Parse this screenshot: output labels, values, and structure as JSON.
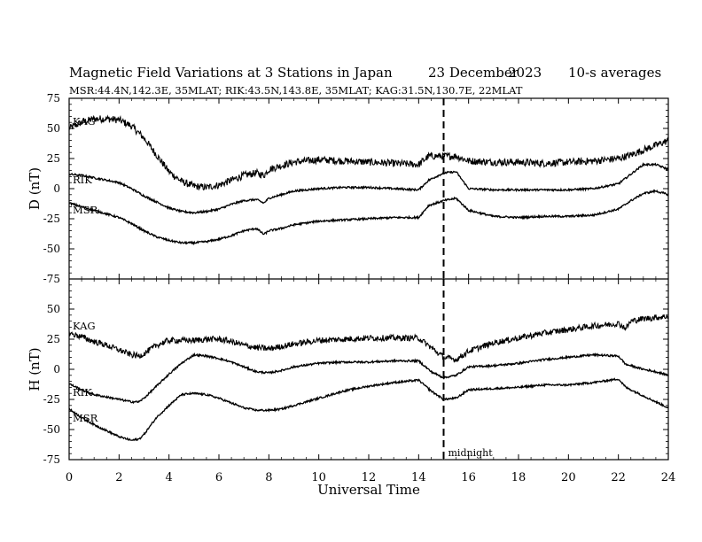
{
  "header": {
    "title": "Magnetic Field Variations at 3 Stations in Japan",
    "date_day": "23 December",
    "date_year": "2023",
    "averaging": "10-s averages",
    "stations_line": "MSR:44.4N,142.3E, 35MLAT;  RIK:43.5N,143.8E, 35MLAT;  KAG:31.5N,130.7E, 22MLAT"
  },
  "chart_data": [
    {
      "type": "line",
      "panel": "top",
      "ylabel": "D (nT)",
      "xlabel": "",
      "xlim": [
        0,
        24
      ],
      "ylim": [
        -75,
        75
      ],
      "xticks": [
        0,
        2,
        4,
        6,
        8,
        10,
        12,
        14,
        16,
        18,
        20,
        22,
        24
      ],
      "yticks": [
        75,
        50,
        25,
        0,
        -25,
        -50,
        -75
      ],
      "marker": {
        "x": 15,
        "style": "dashed"
      },
      "series": [
        {
          "name": "KAG",
          "noise": 3,
          "x": [
            0,
            0.5,
            1,
            1.5,
            2,
            2.5,
            3,
            3.5,
            4,
            4.5,
            5,
            5.5,
            6,
            6.5,
            7,
            7.5,
            7.8,
            8,
            8.5,
            9,
            10,
            11,
            12,
            13,
            14,
            14.4,
            15,
            15.5,
            16,
            17,
            18,
            19,
            20,
            21,
            22,
            22.5,
            23,
            23.5,
            24
          ],
          "y": [
            50,
            55,
            58,
            58,
            57,
            52,
            42,
            28,
            14,
            6,
            2,
            1,
            3,
            7,
            11,
            13,
            11,
            16,
            19,
            22,
            24,
            23,
            22,
            21,
            20,
            27,
            27,
            27,
            23,
            22,
            22,
            21,
            22,
            23,
            25,
            28,
            32,
            36,
            40
          ]
        },
        {
          "name": "RIK",
          "noise": 0.8,
          "x": [
            0,
            0.5,
            1,
            1.5,
            2,
            2.5,
            3,
            3.5,
            4,
            4.5,
            5,
            5.5,
            6,
            6.5,
            7,
            7.5,
            7.8,
            8,
            8.5,
            9,
            10,
            11,
            12,
            13,
            14,
            14.4,
            15,
            15.5,
            16,
            17,
            18,
            19,
            20,
            21,
            22,
            22.5,
            23,
            23.5,
            24
          ],
          "y": [
            12,
            11,
            9,
            7,
            5,
            0,
            -6,
            -11,
            -16,
            -19,
            -20,
            -19,
            -17,
            -13,
            -10,
            -9,
            -12,
            -8,
            -5,
            -2,
            0,
            1,
            1,
            0,
            -1,
            7,
            13,
            14,
            0,
            -1,
            -1,
            -1,
            -1,
            0,
            4,
            12,
            20,
            20,
            16
          ]
        },
        {
          "name": "MSR",
          "noise": 0.8,
          "x": [
            0,
            0.5,
            1,
            1.5,
            2,
            2.5,
            3,
            3.5,
            4,
            4.5,
            5,
            5.5,
            6,
            6.5,
            7,
            7.5,
            7.8,
            8,
            8.5,
            9,
            10,
            11,
            12,
            13,
            14,
            14.4,
            15,
            15.5,
            16,
            17,
            18,
            19,
            20,
            21,
            22,
            22.5,
            23,
            23.5,
            24
          ],
          "y": [
            -12,
            -15,
            -18,
            -21,
            -24,
            -29,
            -35,
            -40,
            -43,
            -45,
            -45,
            -44,
            -42,
            -39,
            -35,
            -33,
            -38,
            -35,
            -33,
            -30,
            -27,
            -26,
            -25,
            -24,
            -24,
            -14,
            -10,
            -8,
            -18,
            -23,
            -24,
            -23,
            -23,
            -22,
            -17,
            -10,
            -4,
            -2,
            -5
          ]
        }
      ]
    },
    {
      "type": "line",
      "panel": "bottom",
      "ylabel": "H (nT)",
      "xlabel": "Universal Time",
      "xlim": [
        0,
        24
      ],
      "ylim": [
        -75,
        75
      ],
      "xticks": [
        0,
        2,
        4,
        6,
        8,
        10,
        12,
        14,
        16,
        18,
        20,
        22,
        24
      ],
      "yticks": [
        50,
        25,
        0,
        -25,
        -50,
        -75
      ],
      "marker": {
        "x": 15,
        "style": "dashed",
        "label": "midnight"
      },
      "series": [
        {
          "name": "KAG",
          "noise": 2.5,
          "x": [
            0,
            0.5,
            1,
            1.5,
            2,
            2.5,
            2.8,
            3,
            3.5,
            4,
            4.5,
            5,
            5.5,
            6,
            6.5,
            7,
            7.5,
            8,
            8.5,
            9,
            10,
            11,
            12,
            13,
            14,
            14.5,
            15,
            15.5,
            16,
            17,
            18,
            19,
            20,
            21,
            22,
            22.3,
            22.5,
            23,
            23.5,
            24
          ],
          "y": [
            30,
            27,
            23,
            20,
            16,
            12,
            11,
            13,
            20,
            24,
            24,
            24,
            25,
            25,
            23,
            20,
            18,
            17,
            19,
            21,
            24,
            25,
            26,
            26,
            26,
            18,
            10,
            8,
            15,
            22,
            26,
            30,
            33,
            36,
            38,
            34,
            40,
            42,
            43,
            44
          ]
        },
        {
          "name": "RIK",
          "noise": 0.8,
          "x": [
            0,
            0.5,
            1,
            1.5,
            2,
            2.5,
            2.8,
            3,
            3.5,
            4,
            4.5,
            5,
            5.5,
            6,
            6.5,
            7,
            7.5,
            8,
            8.5,
            9,
            10,
            11,
            12,
            13,
            14,
            14.5,
            15,
            15.5,
            16,
            17,
            18,
            19,
            20,
            21,
            22,
            22.3,
            22.5,
            23,
            23.5,
            24
          ],
          "y": [
            -12,
            -17,
            -21,
            -23,
            -25,
            -27,
            -27,
            -24,
            -14,
            -4,
            5,
            12,
            11,
            9,
            6,
            2,
            -2,
            -3,
            -1,
            2,
            5,
            6,
            6,
            7,
            7,
            -2,
            -7,
            -5,
            2,
            3,
            5,
            8,
            10,
            12,
            11,
            4,
            3,
            0,
            -2,
            -5
          ]
        },
        {
          "name": "MSR",
          "noise": 0.8,
          "x": [
            0,
            0.5,
            1,
            1.5,
            2,
            2.5,
            2.8,
            3,
            3.5,
            4,
            4.5,
            5,
            5.5,
            6,
            6.5,
            7,
            7.5,
            8,
            8.5,
            9,
            10,
            11,
            12,
            13,
            14,
            14.5,
            15,
            15.5,
            16,
            17,
            18,
            19,
            20,
            21,
            22,
            22.3,
            22.5,
            23,
            23.5,
            24
          ],
          "y": [
            -33,
            -40,
            -46,
            -51,
            -56,
            -59,
            -58,
            -54,
            -40,
            -30,
            -21,
            -20,
            -21,
            -24,
            -28,
            -32,
            -34,
            -34,
            -33,
            -30,
            -24,
            -18,
            -14,
            -11,
            -9,
            -18,
            -25,
            -24,
            -17,
            -16,
            -15,
            -13,
            -13,
            -11,
            -8,
            -15,
            -17,
            -22,
            -27,
            -32
          ]
        }
      ]
    }
  ],
  "xaxis_labels": [
    "0",
    "2",
    "4",
    "6",
    "8",
    "10",
    "12",
    "14",
    "16",
    "18",
    "20",
    "22",
    "24"
  ]
}
